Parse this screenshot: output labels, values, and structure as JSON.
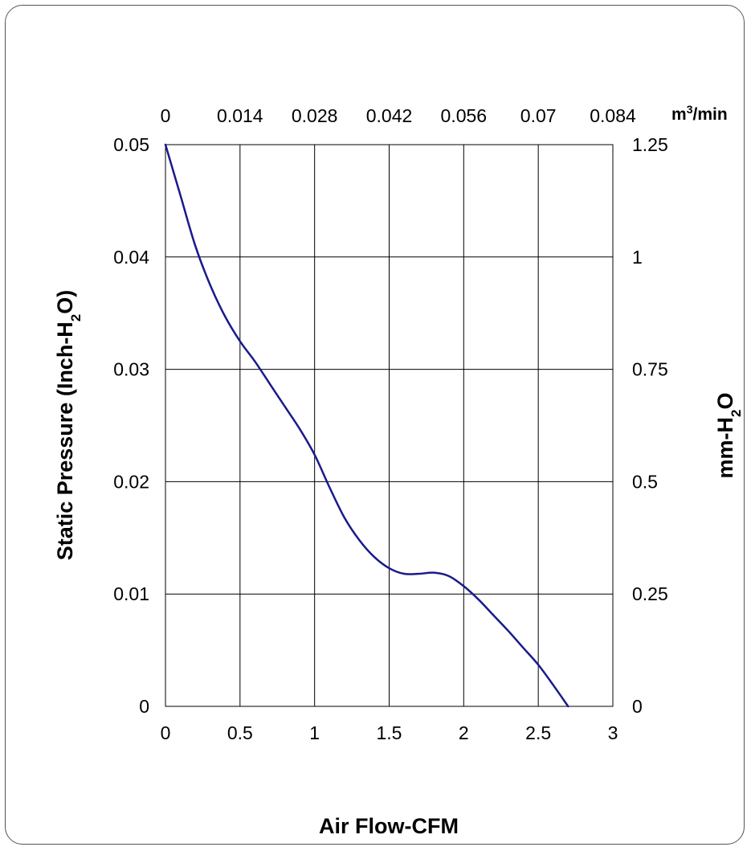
{
  "chart_data": {
    "type": "line",
    "xlabel": "Air Flow-CFM",
    "ylabel_left": {
      "main": "Static Pressure (Inch-H",
      "sub": "2",
      "tail": "O)"
    },
    "ylabel_right": {
      "main": "mm-H",
      "sub": "2",
      "tail": "O"
    },
    "xlabel_top": {
      "main": "m",
      "sup": "3",
      "tail": "/min"
    },
    "xlim": [
      0,
      3
    ],
    "ylim": [
      0,
      0.05
    ],
    "x_ticks": [
      "0",
      "0.5",
      "1",
      "1.5",
      "2",
      "2.5",
      "3"
    ],
    "y_ticks": [
      "0",
      "0.01",
      "0.02",
      "0.03",
      "0.04",
      "0.05"
    ],
    "x_ticks_top": [
      "0",
      "0.014",
      "0.028",
      "0.042",
      "0.056",
      "0.07",
      "0.084"
    ],
    "y_ticks_right": [
      "0",
      "0.25",
      "0.5",
      "0.75",
      "1",
      "1.25"
    ],
    "grid": true,
    "series": [
      {
        "color": "#1a1a8c",
        "x": [
          0,
          0.1,
          0.2,
          0.3,
          0.4,
          0.5,
          0.6,
          0.7,
          0.8,
          0.9,
          1.0,
          1.1,
          1.2,
          1.3,
          1.4,
          1.5,
          1.6,
          1.7,
          1.8,
          1.9,
          2.0,
          2.1,
          2.2,
          2.3,
          2.4,
          2.5,
          2.6,
          2.7
        ],
        "y": [
          0.05,
          0.0455,
          0.041,
          0.0375,
          0.0347,
          0.0325,
          0.0307,
          0.0287,
          0.0267,
          0.0247,
          0.0224,
          0.0195,
          0.0168,
          0.0148,
          0.0133,
          0.0123,
          0.0118,
          0.0118,
          0.0119,
          0.0116,
          0.0107,
          0.0095,
          0.0081,
          0.0067,
          0.0052,
          0.0037,
          0.0019,
          0.0
        ]
      }
    ]
  }
}
